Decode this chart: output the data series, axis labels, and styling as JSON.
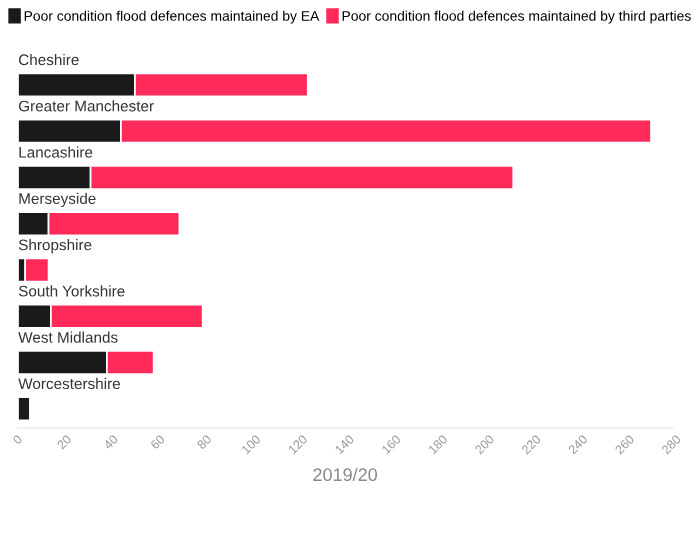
{
  "chart_data": {
    "type": "bar",
    "orientation": "horizontal",
    "stacked": true,
    "xlabel": "2019/20",
    "categories": [
      "Cheshire",
      "Greater Manchester",
      "Lancashire",
      "Merseyside",
      "Shropshire",
      "South Yorkshire",
      "West Midlands",
      "Worcestershire"
    ],
    "series": [
      {
        "name": "Poor condition flood defences maintained by EA",
        "color": "#1a1a1a",
        "values": [
          50,
          44,
          31,
          13,
          3,
          14,
          38,
          5
        ]
      },
      {
        "name": "Poor condition flood defences maintained by third parties",
        "color": "#ff2a5a",
        "values": [
          74,
          227,
          181,
          56,
          10,
          65,
          20,
          null
        ]
      }
    ],
    "xlim": [
      0,
      280
    ],
    "xticks": [
      0,
      20,
      40,
      60,
      80,
      100,
      120,
      140,
      160,
      180,
      200,
      220,
      240,
      260,
      280
    ],
    "grid": false,
    "legend": "top left"
  }
}
